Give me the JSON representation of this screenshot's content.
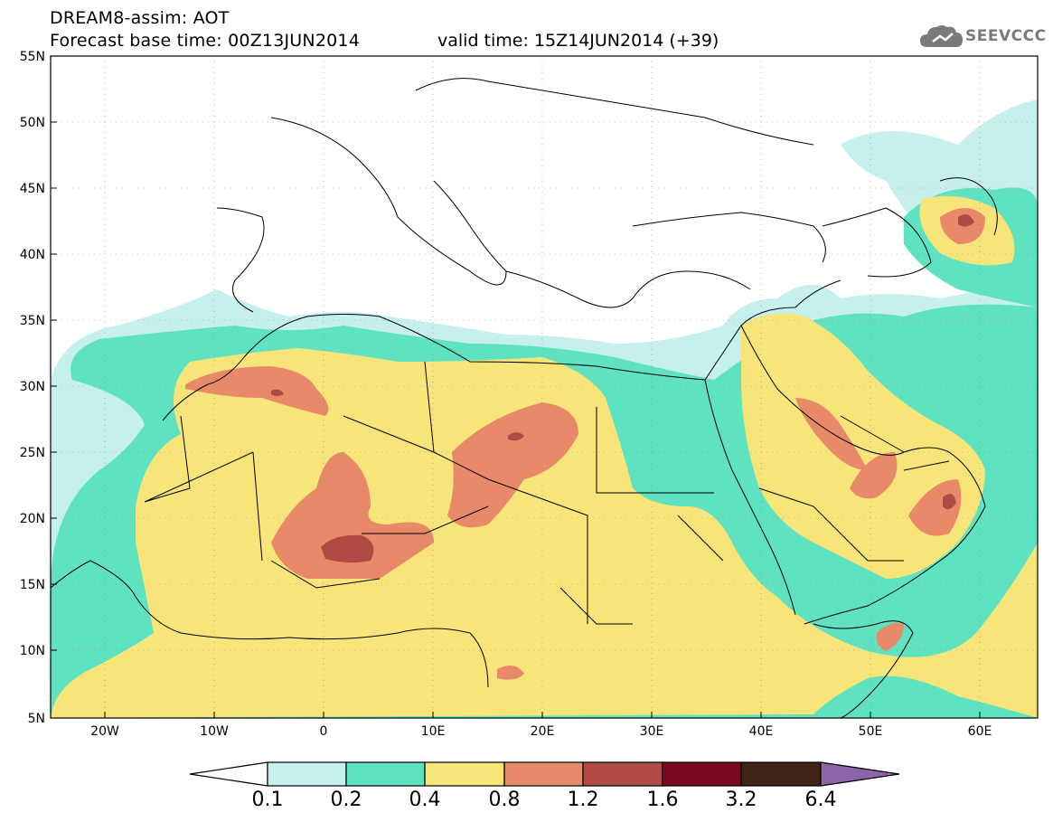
{
  "header": {
    "line1": "DREAM8-assim: AOT",
    "line2": "Forecast base time: 00Z13JUN2014",
    "valid": "valid time: 15Z14JUN2014 (+39)",
    "logo_text": "SEEVCCC"
  },
  "map": {
    "lat_labels": [
      "55N",
      "50N",
      "45N",
      "40N",
      "35N",
      "30N",
      "25N",
      "20N",
      "15N",
      "10N",
      "5N"
    ],
    "lon_labels": [
      "20W",
      "10W",
      "0",
      "10E",
      "20E",
      "30E",
      "40E",
      "50E",
      "60E"
    ]
  },
  "colorbar": {
    "labels": [
      "0.1",
      "0.2",
      "0.4",
      "0.8",
      "1.2",
      "1.6",
      "3.2",
      "6.4"
    ],
    "colors": [
      "#ffffff",
      "#c6f0ec",
      "#5ee2c0",
      "#f8e57a",
      "#e8896a",
      "#b04a44",
      "#780a24",
      "#3e2316",
      "#8c64a8"
    ]
  },
  "palette": {
    "level1": "#c6f0ec",
    "level2": "#5ee2c0",
    "level3": "#f8e57a",
    "level4": "#e8896a",
    "level5": "#b04a44"
  }
}
